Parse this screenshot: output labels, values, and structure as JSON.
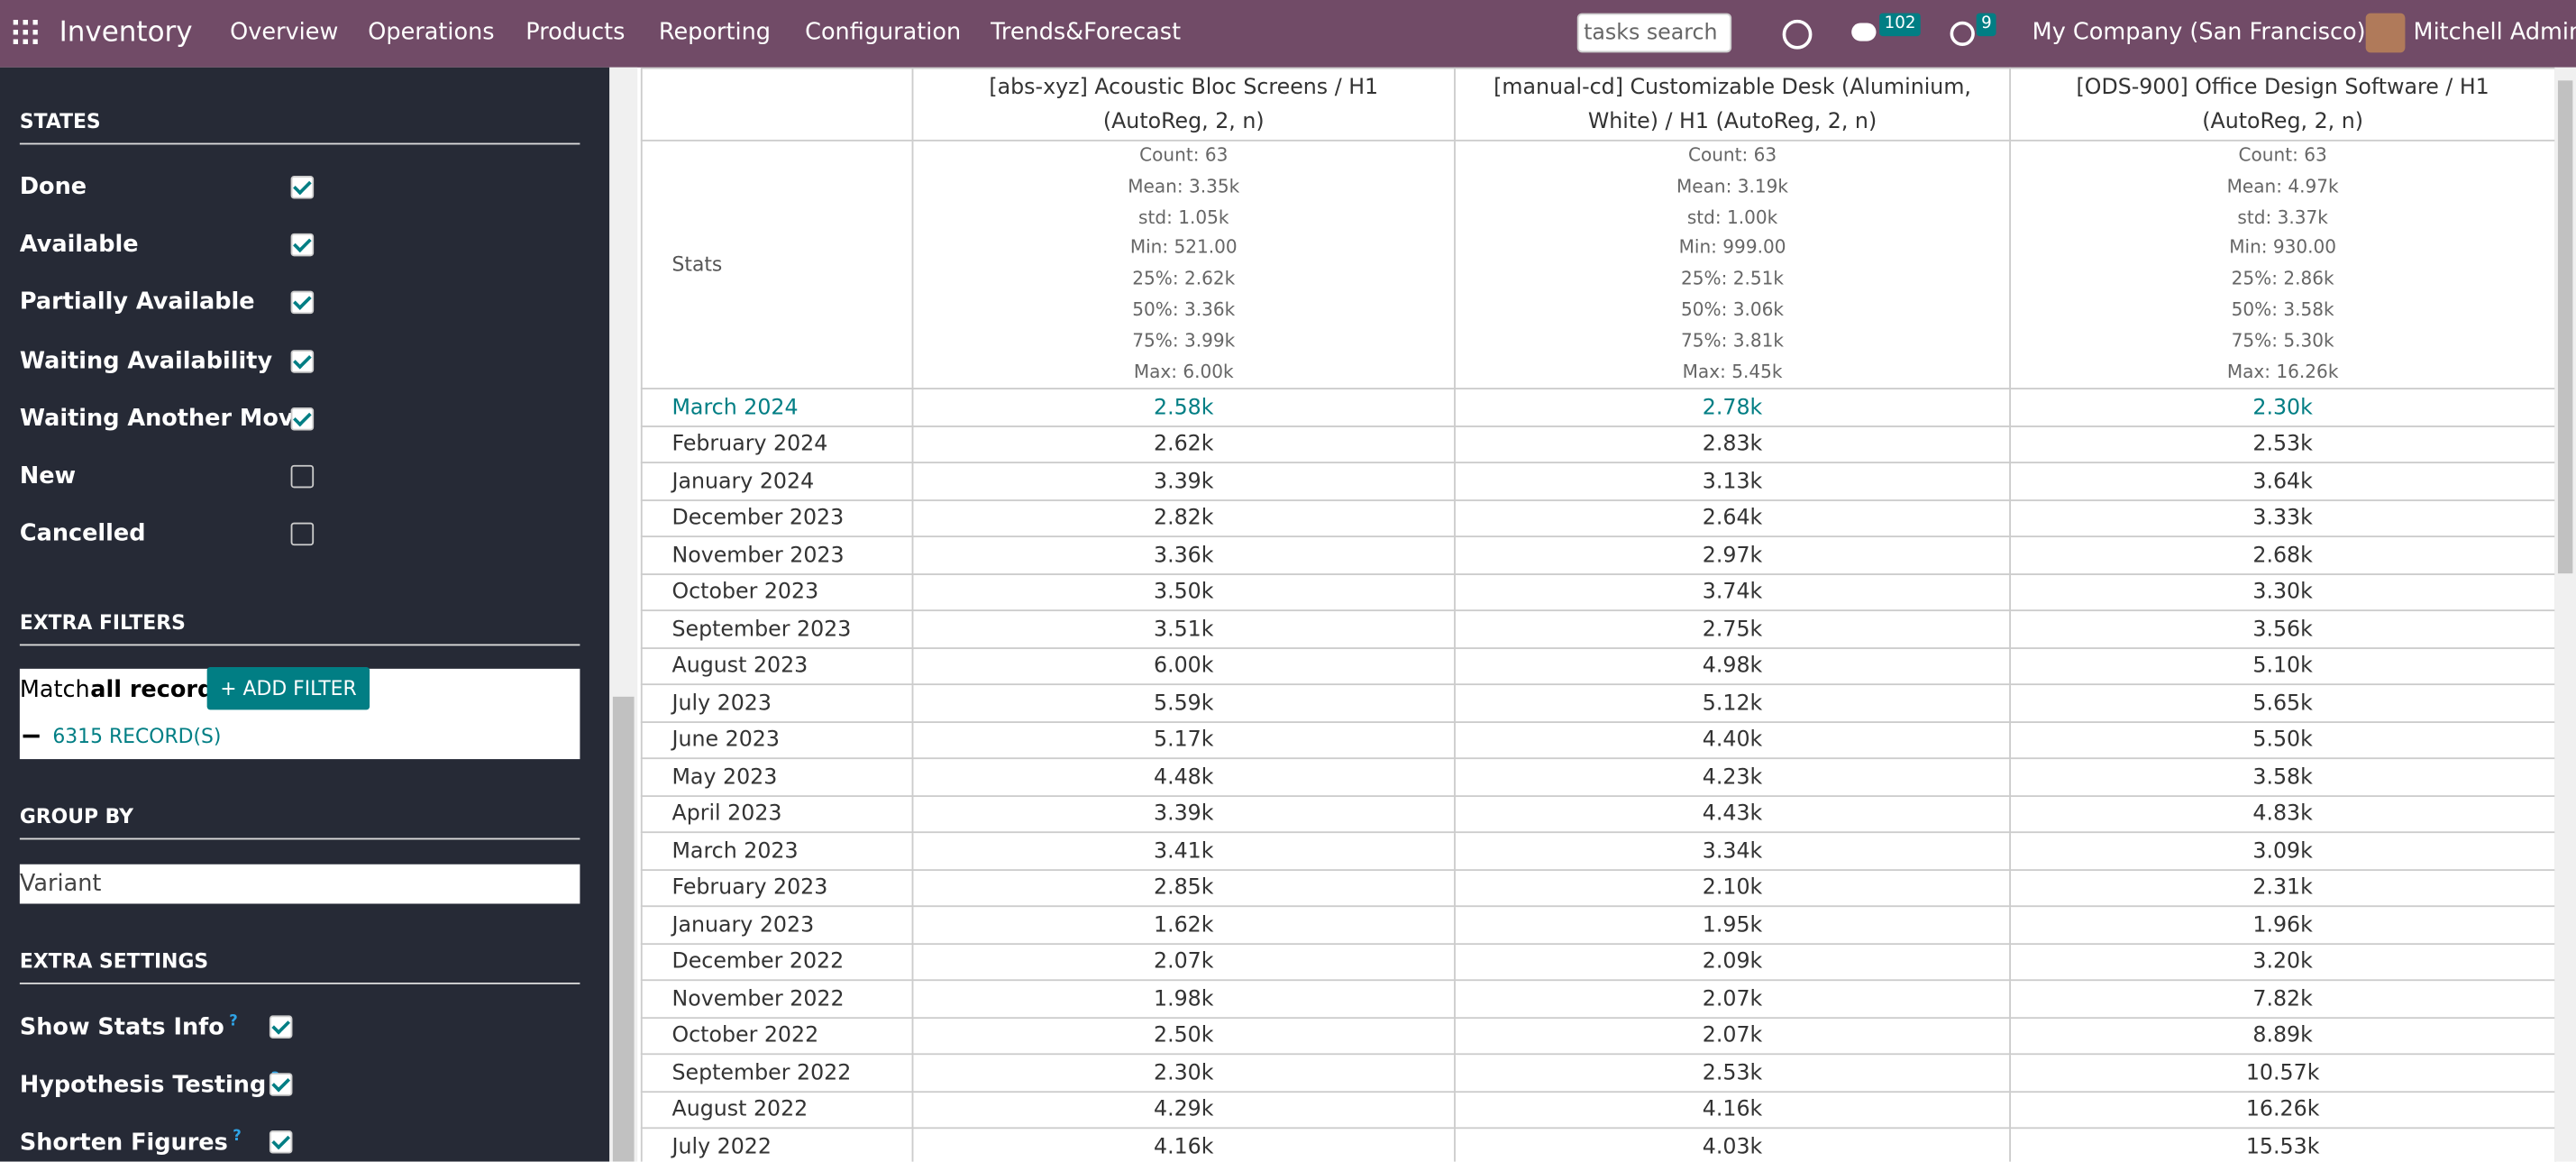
{
  "navbar": {
    "app": "Inventory",
    "menu": [
      "Overview",
      "Operations",
      "Products",
      "Reporting",
      "Configuration",
      "Trends&Forecast"
    ],
    "search_placeholder": "tasks search",
    "messages": "102",
    "activities": "9",
    "company": "My Company (San Francisco)",
    "user": "Mitchell Admin"
  },
  "sidebar": {
    "states": {
      "title": "STATES",
      "items": [
        {
          "label": "Done",
          "checked": true
        },
        {
          "label": "Available",
          "checked": true
        },
        {
          "label": "Partially Available",
          "checked": true
        },
        {
          "label": "Waiting Availability",
          "checked": true
        },
        {
          "label": "Waiting Another Move",
          "checked": true
        },
        {
          "label": "New",
          "checked": false
        },
        {
          "label": "Cancelled",
          "checked": false
        }
      ]
    },
    "extra_filters": {
      "title": "EXTRA FILTERS",
      "match": "Match",
      "all_records": "all records",
      "add_filter": "+ ADD FILTER",
      "records": "6315 RECORD(S)"
    },
    "group_by": {
      "title": "GROUP BY",
      "value": "Variant"
    },
    "extra_settings": {
      "title": "EXTRA SETTINGS",
      "help_mark": "?",
      "items": [
        {
          "label": "Show Stats Info",
          "checked": true
        },
        {
          "label": "Hypothesis Testing",
          "checked": true
        },
        {
          "label": "Shorten Figures",
          "checked": true
        }
      ]
    }
  },
  "table": {
    "columns": [
      "[abs-xyz] Acoustic Bloc Screens / H1 (AutoReg, 2, n)",
      "[manual-cd] Customizable Desk (Aluminium, White) / H1 (AutoReg, 2, n)",
      "[ODS-900] Office Design Software / H1 (AutoReg, 2, n)"
    ],
    "stats_label": "Stats",
    "stats": [
      [
        "Count: 63",
        "Mean: 3.35k",
        "std: 1.05k",
        "Min: 521.00",
        "25%: 2.62k",
        "50%: 3.36k",
        "75%: 3.99k",
        "Max: 6.00k"
      ],
      [
        "Count: 63",
        "Mean: 3.19k",
        "std: 1.00k",
        "Min: 999.00",
        "25%: 2.51k",
        "50%: 3.06k",
        "75%: 3.81k",
        "Max: 5.45k"
      ],
      [
        "Count: 63",
        "Mean: 4.97k",
        "std: 3.37k",
        "Min: 930.00",
        "25%: 2.86k",
        "50%: 3.58k",
        "75%: 5.30k",
        "Max: 16.26k"
      ]
    ],
    "rows": [
      {
        "label": "March 2024",
        "cells": [
          "2.58k",
          "2.78k",
          "2.30k"
        ],
        "highlight": true
      },
      {
        "label": "February 2024",
        "cells": [
          "2.62k",
          "2.83k",
          "2.53k"
        ]
      },
      {
        "label": "January 2024",
        "cells": [
          "3.39k",
          "3.13k",
          "3.64k"
        ]
      },
      {
        "label": "December 2023",
        "cells": [
          "2.82k",
          "2.64k",
          "3.33k"
        ]
      },
      {
        "label": "November 2023",
        "cells": [
          "3.36k",
          "2.97k",
          "2.68k"
        ]
      },
      {
        "label": "October 2023",
        "cells": [
          "3.50k",
          "3.74k",
          "3.30k"
        ]
      },
      {
        "label": "September 2023",
        "cells": [
          "3.51k",
          "2.75k",
          "3.56k"
        ]
      },
      {
        "label": "August 2023",
        "cells": [
          "6.00k",
          "4.98k",
          "5.10k"
        ]
      },
      {
        "label": "July 2023",
        "cells": [
          "5.59k",
          "5.12k",
          "5.65k"
        ]
      },
      {
        "label": "June 2023",
        "cells": [
          "5.17k",
          "4.40k",
          "5.50k"
        ]
      },
      {
        "label": "May 2023",
        "cells": [
          "4.48k",
          "4.23k",
          "3.58k"
        ]
      },
      {
        "label": "April 2023",
        "cells": [
          "3.39k",
          "4.43k",
          "4.83k"
        ]
      },
      {
        "label": "March 2023",
        "cells": [
          "3.41k",
          "3.34k",
          "3.09k"
        ]
      },
      {
        "label": "February 2023",
        "cells": [
          "2.85k",
          "2.10k",
          "2.31k"
        ]
      },
      {
        "label": "January 2023",
        "cells": [
          "1.62k",
          "1.95k",
          "1.96k"
        ]
      },
      {
        "label": "December 2022",
        "cells": [
          "2.07k",
          "2.09k",
          "3.20k"
        ]
      },
      {
        "label": "November 2022",
        "cells": [
          "1.98k",
          "2.07k",
          "7.82k"
        ]
      },
      {
        "label": "October 2022",
        "cells": [
          "2.50k",
          "2.07k",
          "8.89k"
        ]
      },
      {
        "label": "September 2022",
        "cells": [
          "2.30k",
          "2.53k",
          "10.57k"
        ]
      },
      {
        "label": "August 2022",
        "cells": [
          "4.29k",
          "4.16k",
          "16.26k"
        ]
      },
      {
        "label": "July 2022",
        "cells": [
          "4.16k",
          "4.03k",
          "15.53k"
        ]
      }
    ]
  }
}
